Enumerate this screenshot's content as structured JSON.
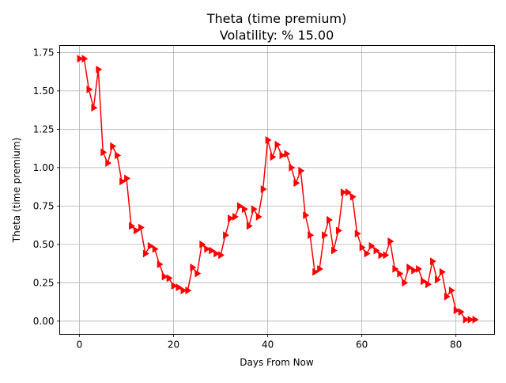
{
  "chart_data": {
    "type": "line",
    "title": "Theta (time premium)",
    "subtitle": "Volatility: % 15.00",
    "xlabel": "Days From Now",
    "ylabel": "Theta (time premium)",
    "xlim": [
      -4.2,
      88.2
    ],
    "ylim": [
      -0.086,
      1.796
    ],
    "xticks": [
      0,
      20,
      40,
      60,
      80
    ],
    "yticks": [
      0.0,
      0.25,
      0.5,
      0.75,
      1.0,
      1.25,
      1.5,
      1.75
    ],
    "xtick_labels": [
      "0",
      "20",
      "40",
      "60",
      "80"
    ],
    "ytick_labels": [
      "0.00",
      "0.25",
      "0.50",
      "0.75",
      "1.00",
      "1.25",
      "1.50",
      "1.75"
    ],
    "grid": true,
    "line_color": "#ff0000",
    "marker": "triangle-right",
    "series": [
      {
        "x": [
          0,
          1,
          2,
          3,
          4,
          5,
          6,
          7,
          8,
          9,
          10,
          11,
          12,
          13,
          14,
          15,
          16,
          17,
          18,
          19,
          20,
          21,
          22,
          23,
          24,
          25,
          26,
          27,
          28,
          29,
          30,
          31,
          32,
          33,
          34,
          35,
          36,
          37,
          38,
          39,
          40,
          41,
          42,
          43,
          44,
          45,
          46,
          47,
          48,
          49,
          50,
          51,
          52,
          53,
          54,
          55,
          56,
          57,
          58,
          59,
          60,
          61,
          62,
          63,
          64,
          65,
          66,
          67,
          68,
          69,
          70,
          71,
          72,
          73,
          74,
          75,
          76,
          77,
          78,
          79,
          80,
          81,
          82,
          83,
          84
        ],
        "values": [
          1.71,
          1.71,
          1.51,
          1.39,
          1.64,
          1.1,
          1.03,
          1.14,
          1.08,
          0.91,
          0.93,
          0.62,
          0.59,
          0.61,
          0.44,
          0.49,
          0.47,
          0.37,
          0.29,
          0.28,
          0.23,
          0.22,
          0.2,
          0.2,
          0.35,
          0.31,
          0.5,
          0.47,
          0.46,
          0.44,
          0.43,
          0.56,
          0.67,
          0.68,
          0.75,
          0.73,
          0.62,
          0.73,
          0.68,
          0.86,
          1.18,
          1.07,
          1.15,
          1.08,
          1.09,
          1.0,
          0.9,
          0.98,
          0.69,
          0.56,
          0.32,
          0.34,
          0.56,
          0.66,
          0.46,
          0.59,
          0.84,
          0.84,
          0.81,
          0.57,
          0.48,
          0.44,
          0.49,
          0.46,
          0.43,
          0.43,
          0.52,
          0.34,
          0.31,
          0.25,
          0.35,
          0.33,
          0.34,
          0.26,
          0.24,
          0.39,
          0.27,
          0.32,
          0.16,
          0.2,
          0.07,
          0.06,
          0.01,
          0.01,
          0.01
        ]
      }
    ]
  }
}
